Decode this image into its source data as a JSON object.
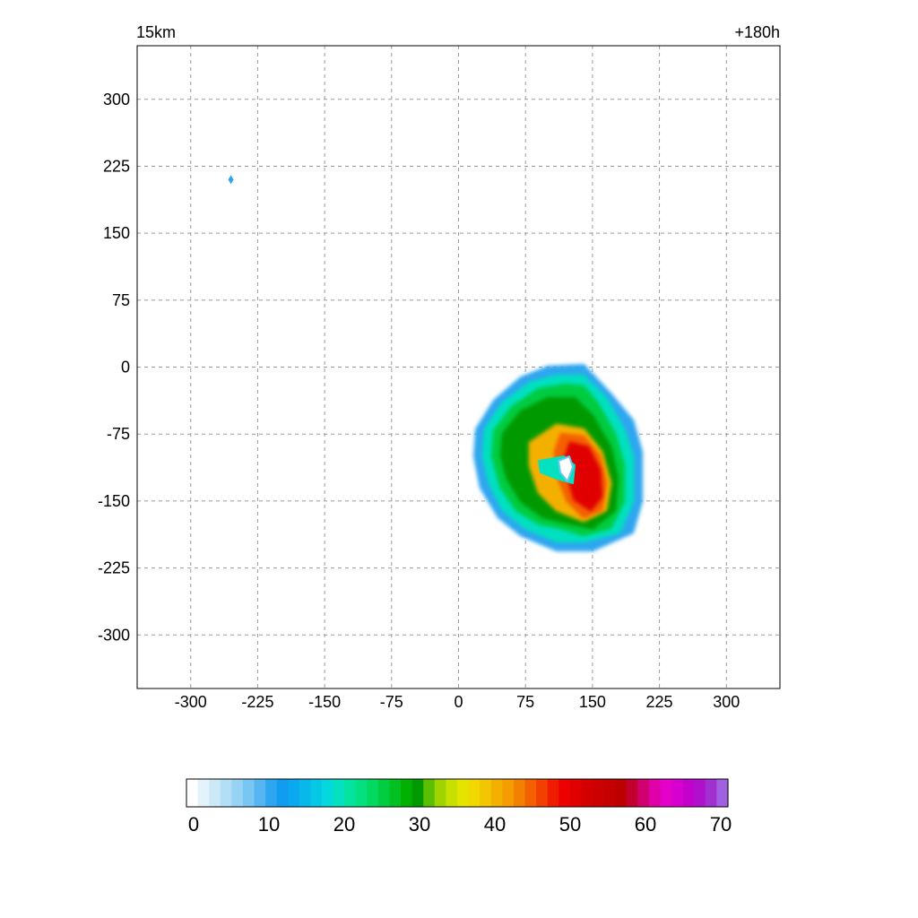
{
  "header": {
    "left_label": "15km",
    "right_label": "+180h"
  },
  "chart_data": {
    "type": "heatmap",
    "title": "",
    "xlabel": "",
    "ylabel": "",
    "xlim": [
      -360,
      360
    ],
    "ylim": [
      -360,
      360
    ],
    "grid": true,
    "x_ticks": [
      -300,
      -225,
      -150,
      -75,
      0,
      75,
      150,
      225,
      300
    ],
    "y_ticks": [
      300,
      225,
      150,
      75,
      0,
      -75,
      -150,
      -225,
      -300
    ],
    "field_description": "Hook-shaped precipitation echo centered near x=110, y=-110; maximum values (about 50-55) on the eastern side, weak-echo center near x=118, y=-112",
    "contours": [
      {
        "level": 10,
        "points": [
          [
            20,
            -70
          ],
          [
            40,
            -38
          ],
          [
            70,
            -12
          ],
          [
            100,
            0
          ],
          [
            140,
            2
          ],
          [
            170,
            -30
          ],
          [
            195,
            -60
          ],
          [
            205,
            -95
          ],
          [
            205,
            -150
          ],
          [
            195,
            -185
          ],
          [
            150,
            -205
          ],
          [
            110,
            -205
          ],
          [
            70,
            -188
          ],
          [
            45,
            -168
          ],
          [
            25,
            -135
          ],
          [
            18,
            -100
          ]
        ]
      },
      {
        "level": 20,
        "points": [
          [
            30,
            -70
          ],
          [
            50,
            -40
          ],
          [
            80,
            -18
          ],
          [
            110,
            -10
          ],
          [
            140,
            -10
          ],
          [
            165,
            -35
          ],
          [
            185,
            -70
          ],
          [
            195,
            -100
          ],
          [
            195,
            -150
          ],
          [
            180,
            -185
          ],
          [
            140,
            -195
          ],
          [
            110,
            -195
          ],
          [
            75,
            -180
          ],
          [
            50,
            -160
          ],
          [
            35,
            -130
          ],
          [
            28,
            -100
          ]
        ]
      },
      {
        "level": 25,
        "points": [
          [
            40,
            -72
          ],
          [
            60,
            -45
          ],
          [
            90,
            -25
          ],
          [
            120,
            -20
          ],
          [
            140,
            -22
          ],
          [
            155,
            -40
          ],
          [
            175,
            -75
          ],
          [
            185,
            -110
          ],
          [
            185,
            -150
          ],
          [
            170,
            -180
          ],
          [
            140,
            -188
          ],
          [
            115,
            -180
          ],
          [
            90,
            -175
          ],
          [
            65,
            -160
          ],
          [
            48,
            -135
          ],
          [
            38,
            -100
          ]
        ]
      },
      {
        "level": 30,
        "points": [
          [
            50,
            -75
          ],
          [
            70,
            -50
          ],
          [
            100,
            -35
          ],
          [
            130,
            -35
          ],
          [
            150,
            -55
          ],
          [
            170,
            -90
          ],
          [
            178,
            -125
          ],
          [
            175,
            -160
          ],
          [
            150,
            -180
          ],
          [
            125,
            -175
          ],
          [
            95,
            -168
          ],
          [
            70,
            -150
          ],
          [
            55,
            -125
          ],
          [
            48,
            -100
          ]
        ]
      },
      {
        "level": 40,
        "points": [
          [
            80,
            -85
          ],
          [
            110,
            -65
          ],
          [
            140,
            -70
          ],
          [
            160,
            -95
          ],
          [
            170,
            -130
          ],
          [
            165,
            -160
          ],
          [
            140,
            -172
          ],
          [
            110,
            -160
          ],
          [
            90,
            -140
          ],
          [
            80,
            -110
          ]
        ]
      },
      {
        "level": 45,
        "points": [
          [
            115,
            -75
          ],
          [
            140,
            -78
          ],
          [
            158,
            -100
          ],
          [
            165,
            -130
          ],
          [
            160,
            -160
          ],
          [
            140,
            -168
          ],
          [
            122,
            -150
          ],
          [
            110,
            -120
          ],
          [
            108,
            -95
          ]
        ]
      },
      {
        "level": 50,
        "points": [
          [
            125,
            -85
          ],
          [
            145,
            -90
          ],
          [
            158,
            -115
          ],
          [
            160,
            -145
          ],
          [
            148,
            -160
          ],
          [
            130,
            -148
          ],
          [
            122,
            -120
          ],
          [
            120,
            -100
          ]
        ]
      }
    ],
    "inner_ring": {
      "level": 20,
      "points": [
        [
          90,
          -105
        ],
        [
          118,
          -100
        ],
        [
          130,
          -110
        ],
        [
          128,
          -130
        ],
        [
          110,
          -125
        ],
        [
          92,
          -118
        ]
      ]
    },
    "eye": {
      "level": 0,
      "points": [
        [
          112,
          -105
        ],
        [
          124,
          -100
        ],
        [
          128,
          -112
        ],
        [
          122,
          -128
        ],
        [
          114,
          -118
        ]
      ]
    },
    "isolated_cells": [
      {
        "x": -255,
        "y": 210,
        "level": 10
      }
    ],
    "colorbar": {
      "min": 0,
      "max": 70,
      "tick_labels": [
        "0",
        "10",
        "20",
        "30",
        "40",
        "50",
        "60",
        "70"
      ],
      "colors": [
        "#ffffff",
        "#e4f3fb",
        "#cce9f8",
        "#b2def6",
        "#96d3f5",
        "#78c6f4",
        "#55b6f2",
        "#2ea6ef",
        "#119cf0",
        "#0aa8ee",
        "#08b8ea",
        "#06c8e4",
        "#04d8dd",
        "#04e0c0",
        "#04e2a0",
        "#04e080",
        "#03d860",
        "#02cc40",
        "#02c020",
        "#01b000",
        "#009a00",
        "#5cbe00",
        "#a0d400",
        "#c8e000",
        "#e4e400",
        "#f0d800",
        "#f2c600",
        "#f4b000",
        "#f49c00",
        "#f48000",
        "#f46000",
        "#f24000",
        "#f01c00",
        "#ec0000",
        "#e00000",
        "#d40000",
        "#cc0000",
        "#c40000",
        "#bc0000",
        "#c20030",
        "#d00070",
        "#e000a8",
        "#e400c8",
        "#d800d0",
        "#c400cc",
        "#b010cc",
        "#a030d0",
        "#a060e0"
      ]
    }
  }
}
